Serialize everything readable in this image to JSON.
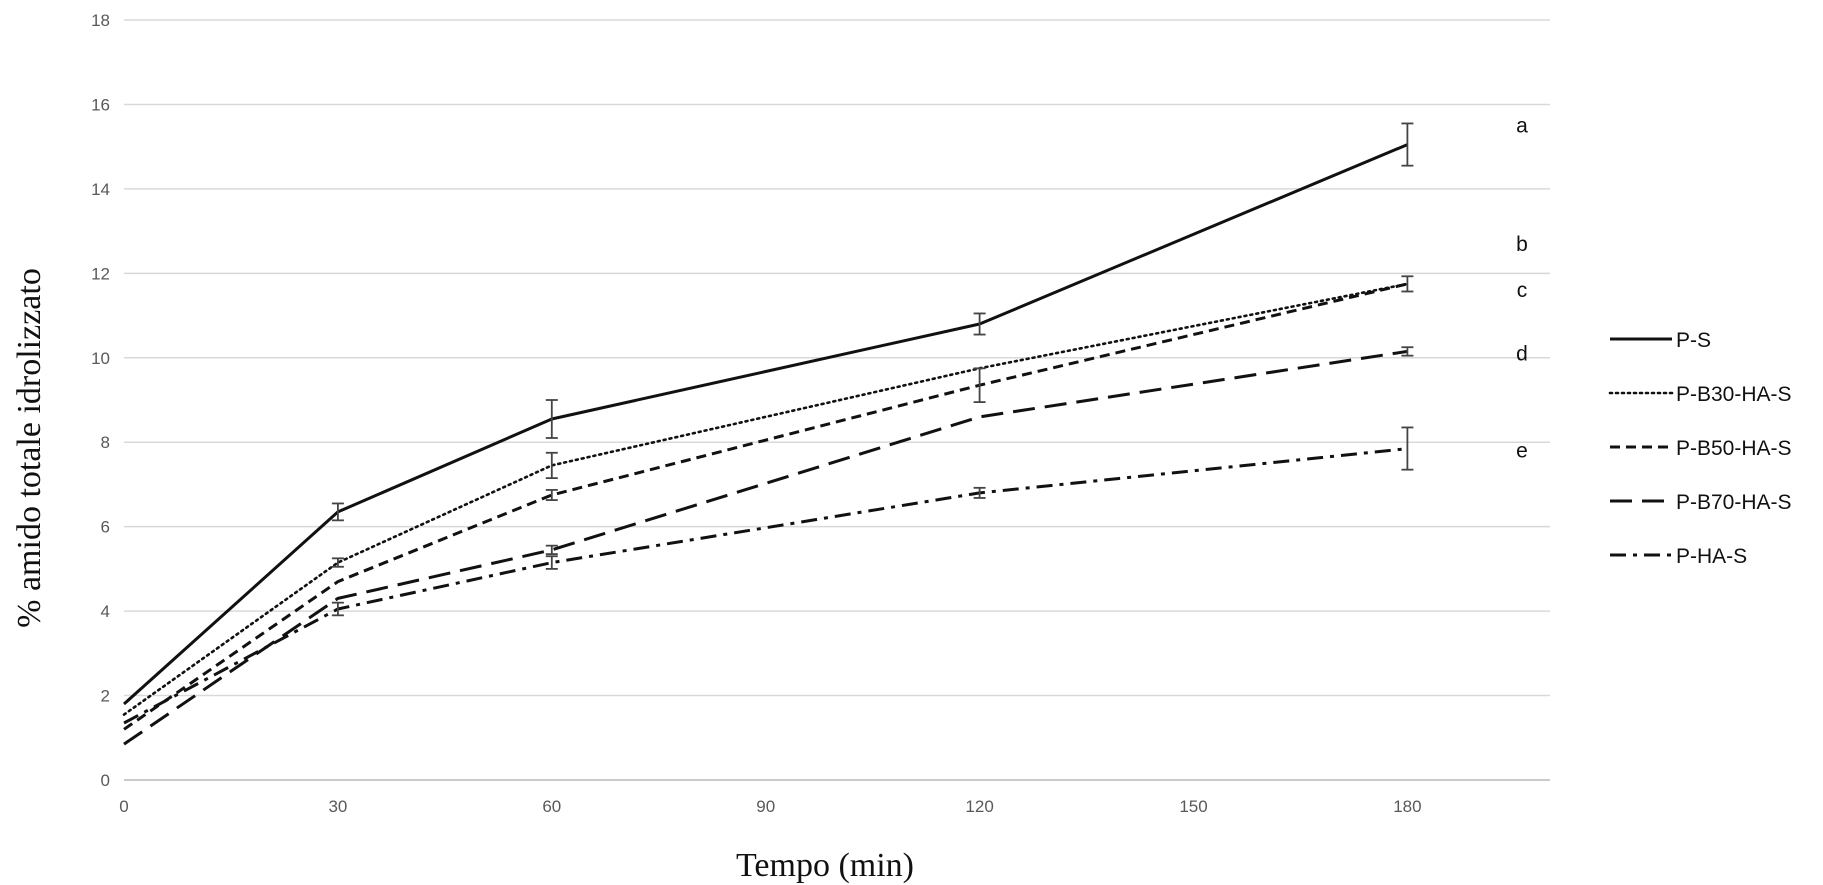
{
  "chart_data": {
    "type": "line",
    "xlabel": "Tempo (min)",
    "ylabel": "% amido totale idrolizzato",
    "xlim": [
      0,
      200
    ],
    "ylim": [
      0,
      18
    ],
    "x_ticks": [
      0,
      30,
      60,
      90,
      120,
      150,
      180
    ],
    "y_ticks": [
      0,
      2,
      4,
      6,
      8,
      10,
      12,
      14,
      16,
      18
    ],
    "grid": "horizontal",
    "legend_position": "right",
    "x": [
      0,
      30,
      60,
      120,
      180
    ],
    "series": [
      {
        "name": "P-S",
        "dash": "solid",
        "values": [
          1.8,
          6.35,
          8.55,
          10.8,
          15.05
        ],
        "errors": [
          0,
          0.2,
          0.45,
          0.25,
          0.5
        ],
        "letter": "a"
      },
      {
        "name": "P-B30-HA-S",
        "dash": "dotted",
        "values": [
          1.55,
          5.15,
          7.45,
          9.75,
          11.75
        ],
        "errors": [
          0,
          0.1,
          0.3,
          0,
          0
        ],
        "letter": "b"
      },
      {
        "name": "P-B50-HA-S",
        "dash": "dashed",
        "values": [
          1.2,
          4.7,
          6.75,
          9.35,
          11.75
        ],
        "errors": [
          0,
          0,
          0.12,
          0.4,
          0.18
        ],
        "letter": "c"
      },
      {
        "name": "P-B70-HA-S",
        "dash": "longdash",
        "values": [
          0.85,
          4.3,
          5.45,
          8.6,
          10.15
        ],
        "errors": [
          0,
          0,
          0.1,
          0,
          0.1
        ],
        "letter": "d"
      },
      {
        "name": "P-HA-S",
        "dash": "dashdot",
        "values": [
          1.35,
          4.05,
          5.15,
          6.8,
          7.85
        ],
        "errors": [
          0,
          0.15,
          0.15,
          0.12,
          0.5
        ],
        "letter": "e"
      }
    ],
    "significance_letters": [
      {
        "text": "a",
        "y": 15.5
      },
      {
        "text": "b",
        "y": 12.7
      },
      {
        "text": "c",
        "y": 11.6
      },
      {
        "text": "d",
        "y": 10.1
      },
      {
        "text": "e",
        "y": 7.8
      }
    ],
    "line_color": "#111111",
    "error_bar_color": "#444444",
    "grid_color": "#d9d9d9"
  }
}
